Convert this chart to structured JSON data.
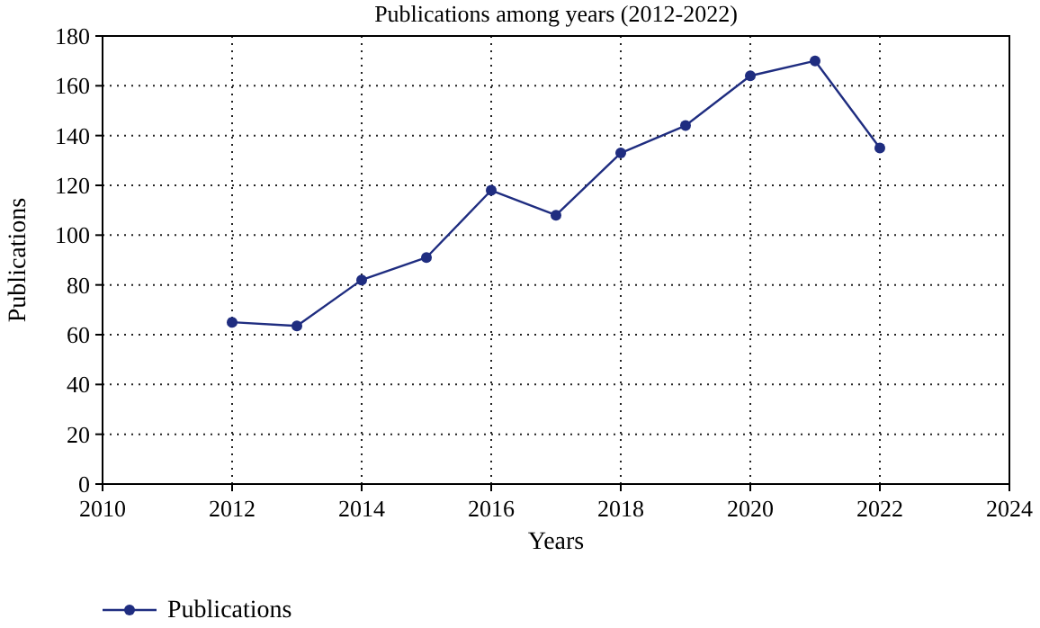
{
  "chart_data": {
    "type": "line",
    "title": "Publications among years (2012-2022)",
    "xlabel": "Years",
    "ylabel": "Publications",
    "x": [
      2012,
      2013,
      2014,
      2015,
      2016,
      2017,
      2018,
      2019,
      2020,
      2021,
      2022
    ],
    "series": [
      {
        "name": "Publications",
        "color": "#1f2d80",
        "values": [
          65,
          63.5,
          82,
          91,
          118,
          108,
          133,
          144,
          164,
          170,
          135
        ]
      }
    ],
    "xlim": [
      2010,
      2024
    ],
    "xticks": [
      2010,
      2012,
      2014,
      2016,
      2018,
      2020,
      2022,
      2024
    ],
    "ylim": [
      0,
      180
    ],
    "yticks": [
      0,
      20,
      40,
      60,
      80,
      100,
      120,
      140,
      160,
      180
    ],
    "grid": true,
    "legend": "bottom left",
    "marker": "circle",
    "line_style": "solid"
  }
}
